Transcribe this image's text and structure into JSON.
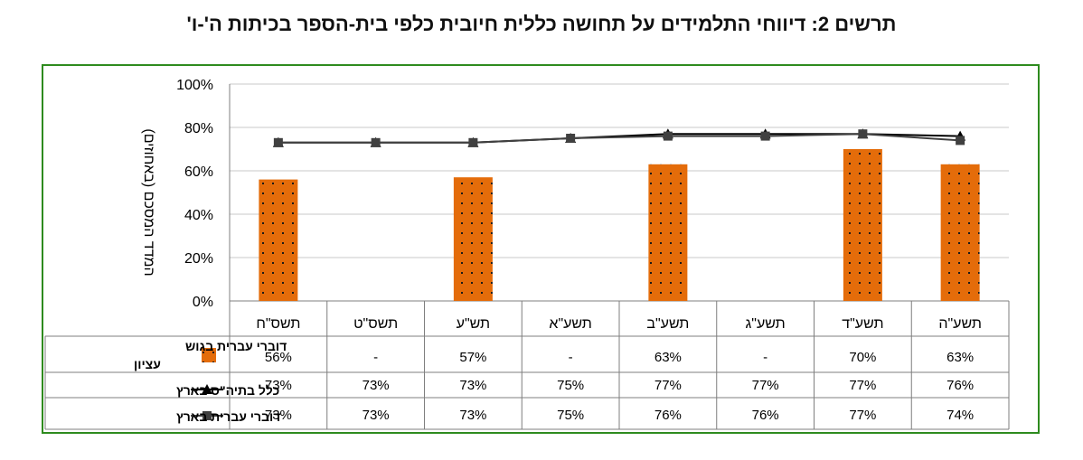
{
  "chart_data": {
    "type": "bar",
    "title": "תרשים 2: דיווחי התלמידים על תחושה כללית חיובית כלפי בית-הספר בכיתות ה'-ו'",
    "ylabel": "המדד המסכם (באחוזים)",
    "ylim": [
      0,
      100
    ],
    "yticks": [
      "0%",
      "20%",
      "40%",
      "60%",
      "80%",
      "100%"
    ],
    "categories": [
      "תשס\"ח",
      "תשס\"ט",
      "תש\"ע",
      "תשע\"א",
      "תשע\"ב",
      "תשע\"ג",
      "תשע\"ד",
      "תשע\"ה"
    ],
    "series": [
      {
        "name": "דוברי עברית בגוש עציון",
        "kind": "bar",
        "color": "#e46c0a",
        "values": [
          56,
          null,
          57,
          null,
          63,
          null,
          70,
          63
        ],
        "labels": [
          "56%",
          "-",
          "57%",
          "-",
          "63%",
          "-",
          "70%",
          "63%"
        ]
      },
      {
        "name": "כלל בתיה\"ס בארץ",
        "kind": "line",
        "marker": "triangle",
        "color": "#000000",
        "values": [
          73,
          73,
          73,
          75,
          77,
          77,
          77,
          76
        ],
        "labels": [
          "73%",
          "73%",
          "73%",
          "75%",
          "77%",
          "77%",
          "77%",
          "76%"
        ]
      },
      {
        "name": "דוברי עברית בארץ",
        "kind": "line",
        "marker": "square",
        "color": "#404040",
        "values": [
          73,
          73,
          73,
          75,
          76,
          76,
          77,
          74
        ],
        "labels": [
          "73%",
          "73%",
          "73%",
          "75%",
          "76%",
          "76%",
          "77%",
          "74%"
        ]
      }
    ],
    "grid": true,
    "legend": "data table rows on the left"
  }
}
